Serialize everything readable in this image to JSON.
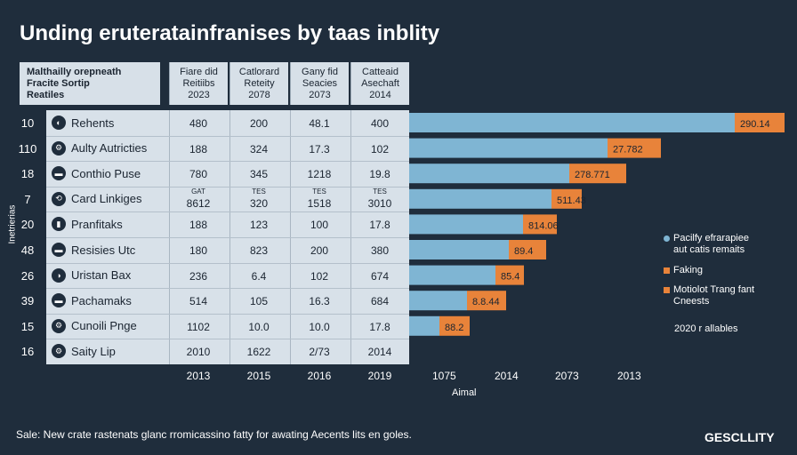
{
  "chart_data": {
    "type": "bar",
    "title": "Unding eruteratainfranises by taas inblity",
    "header": {
      "lead_lines": [
        "Malthailly orepneath",
        "Fracite Sortip",
        "Reatiles"
      ],
      "columns": [
        {
          "lines": [
            "Fiare did",
            "Reitiibs",
            "2023"
          ]
        },
        {
          "lines": [
            "Catlorard",
            "Reteity",
            "2078"
          ]
        },
        {
          "lines": [
            "Gany fid",
            "Seacies",
            "2073"
          ]
        },
        {
          "lines": [
            "Catteaid",
            "Asechaft",
            "2014"
          ]
        }
      ]
    },
    "y_axis_label": "Inetrierias",
    "x_axis_label": "Aimal",
    "x_ticks": [
      "1075",
      "2014",
      "2073",
      "2013"
    ],
    "bottom_row": [
      "2013",
      "2015",
      "2016",
      "2019"
    ],
    "rows": [
      {
        "num": "10",
        "icon": "◐",
        "label": "Rehents",
        "cells": [
          "480",
          "200",
          "48.1",
          "400"
        ],
        "subs": [
          "",
          "",
          "",
          ""
        ],
        "blue": 826,
        "orange": 56,
        "value_label": "290.14"
      },
      {
        "num": "110",
        "icon": "⚙",
        "label": "Aulty Autricties",
        "cells": [
          "188",
          "324",
          "17.3",
          "102"
        ],
        "subs": [
          "",
          "",
          "",
          ""
        ],
        "blue": 683,
        "orange": 60,
        "value_label": "27.782"
      },
      {
        "num": "18",
        "icon": "▬",
        "label": "Conthio Puse",
        "cells": [
          "780",
          "345",
          "1218",
          "19.8"
        ],
        "subs": [
          "",
          "",
          "",
          ""
        ],
        "blue": 640,
        "orange": 64,
        "value_label": "278.771"
      },
      {
        "num": "7",
        "icon": "⟲",
        "label": "Card Linkiges",
        "cells": [
          "8612",
          "320",
          "1518",
          "3010"
        ],
        "subs": [
          "GAT",
          "TES",
          "TES",
          "TES"
        ],
        "blue": 620,
        "orange": 34,
        "value_label": "511.43"
      },
      {
        "num": "20",
        "icon": "▮",
        "label": "Pranfitaks",
        "cells": [
          "188",
          "123",
          "100",
          "17.8"
        ],
        "subs": [
          "",
          "",
          "",
          ""
        ],
        "blue": 588,
        "orange": 38,
        "value_label": "814.06"
      },
      {
        "num": "48",
        "icon": "▬",
        "label": "Resisies Utc",
        "cells": [
          "180",
          "823",
          "200",
          "380"
        ],
        "subs": [
          "",
          "",
          "",
          ""
        ],
        "blue": 572,
        "orange": 42,
        "value_label": "89.4"
      },
      {
        "num": "26",
        "icon": "◑",
        "label": "Uristan Bax",
        "cells": [
          "236",
          "6.4",
          "102",
          "674"
        ],
        "subs": [
          "",
          "",
          "",
          ""
        ],
        "blue": 557,
        "orange": 32,
        "value_label": "85.4"
      },
      {
        "num": "39",
        "icon": "▬",
        "label": "Pachamaks",
        "cells": [
          "514",
          "105",
          "16.3",
          "684"
        ],
        "subs": [
          "",
          "",
          "",
          ""
        ],
        "blue": 525,
        "orange": 44,
        "value_label": "8.8.44"
      },
      {
        "num": "15",
        "icon": "⚙",
        "label": "Cunoili Pnge",
        "cells": [
          "1102",
          "10.0",
          "10.0",
          "17.8"
        ],
        "subs": [
          "",
          "",
          "",
          ""
        ],
        "blue": 494,
        "orange": 34,
        "value_label": "88.2"
      },
      {
        "num": "16",
        "icon": "⚙",
        "label": "Saity Lip",
        "cells": [
          "2010",
          "1622",
          "2/73",
          "2014"
        ],
        "subs": [
          "",
          "",
          "",
          ""
        ],
        "blue": 0,
        "orange": 0,
        "value_label": ""
      }
    ],
    "legend": [
      {
        "label": "Pacilfy efrarapiee",
        "label2": "aut catis remaits",
        "color": "#7fb5d3",
        "marker": "dot"
      },
      {
        "label": "Faking",
        "label2": "",
        "color": "#e8833a",
        "marker": "square"
      },
      {
        "label": "Motiolot Trang fant",
        "label2": "Cneests",
        "color": "#e8833a",
        "marker": "square"
      },
      {
        "label": "2020 r allables",
        "label2": "",
        "color": "",
        "marker": "none"
      }
    ],
    "series_colors": {
      "primary": "#7fb5d3",
      "secondary": "#e8833a"
    }
  },
  "footer": "Sale: New crate rastenats glanc rromicassino fatty for awating Aecents lits en goles.",
  "brand": "GESCLLITY"
}
